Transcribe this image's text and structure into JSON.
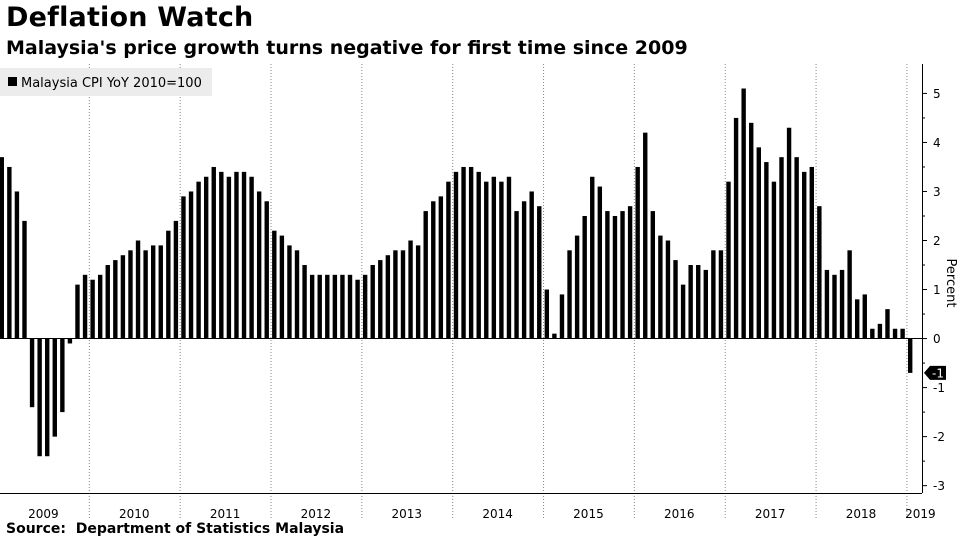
{
  "title": "Deflation Watch",
  "subtitle": "Malaysia's price growth turns negative for first time since 2009",
  "source": "Source:  Department of Statistics Malaysia",
  "chart_data": {
    "type": "bar",
    "series": [
      {
        "name": "Malaysia CPI YoY 2010=100",
        "color": "#000000",
        "x": [
          "2009-01",
          "2009-02",
          "2009-03",
          "2009-04",
          "2009-05",
          "2009-06",
          "2009-07",
          "2009-08",
          "2009-09",
          "2009-10",
          "2009-11",
          "2009-12",
          "2010-01",
          "2010-02",
          "2010-03",
          "2010-04",
          "2010-05",
          "2010-06",
          "2010-07",
          "2010-08",
          "2010-09",
          "2010-10",
          "2010-11",
          "2010-12",
          "2011-01",
          "2011-02",
          "2011-03",
          "2011-04",
          "2011-05",
          "2011-06",
          "2011-07",
          "2011-08",
          "2011-09",
          "2011-10",
          "2011-11",
          "2011-12",
          "2012-01",
          "2012-02",
          "2012-03",
          "2012-04",
          "2012-05",
          "2012-06",
          "2012-07",
          "2012-08",
          "2012-09",
          "2012-10",
          "2012-11",
          "2012-12",
          "2013-01",
          "2013-02",
          "2013-03",
          "2013-04",
          "2013-05",
          "2013-06",
          "2013-07",
          "2013-08",
          "2013-09",
          "2013-10",
          "2013-11",
          "2013-12",
          "2014-01",
          "2014-02",
          "2014-03",
          "2014-04",
          "2014-05",
          "2014-06",
          "2014-07",
          "2014-08",
          "2014-09",
          "2014-10",
          "2014-11",
          "2014-12",
          "2015-01",
          "2015-02",
          "2015-03",
          "2015-04",
          "2015-05",
          "2015-06",
          "2015-07",
          "2015-08",
          "2015-09",
          "2015-10",
          "2015-11",
          "2015-12",
          "2016-01",
          "2016-02",
          "2016-03",
          "2016-04",
          "2016-05",
          "2016-06",
          "2016-07",
          "2016-08",
          "2016-09",
          "2016-10",
          "2016-11",
          "2016-12",
          "2017-01",
          "2017-02",
          "2017-03",
          "2017-04",
          "2017-05",
          "2017-06",
          "2017-07",
          "2017-08",
          "2017-09",
          "2017-10",
          "2017-11",
          "2017-12",
          "2018-01",
          "2018-02",
          "2018-03",
          "2018-04",
          "2018-05",
          "2018-06",
          "2018-07",
          "2018-08",
          "2018-09",
          "2018-10",
          "2018-11",
          "2018-12",
          "2019-01"
        ],
        "values": [
          3.7,
          3.5,
          3.0,
          2.4,
          -1.4,
          -2.4,
          -2.4,
          -2.0,
          -1.5,
          -0.1,
          1.1,
          1.3,
          1.2,
          1.3,
          1.5,
          1.6,
          1.7,
          1.8,
          2.0,
          1.8,
          1.9,
          1.9,
          2.2,
          2.4,
          2.9,
          3.0,
          3.2,
          3.3,
          3.5,
          3.4,
          3.3,
          3.4,
          3.4,
          3.3,
          3.0,
          2.8,
          2.2,
          2.1,
          1.9,
          1.8,
          1.5,
          1.3,
          1.3,
          1.3,
          1.3,
          1.3,
          1.3,
          1.2,
          1.3,
          1.5,
          1.6,
          1.7,
          1.8,
          1.8,
          2.0,
          1.9,
          2.6,
          2.8,
          2.9,
          3.2,
          3.4,
          3.5,
          3.5,
          3.4,
          3.2,
          3.3,
          3.2,
          3.3,
          2.6,
          2.8,
          3.0,
          2.7,
          1.0,
          0.1,
          0.9,
          1.8,
          2.1,
          2.5,
          3.3,
          3.1,
          2.6,
          2.5,
          2.6,
          2.7,
          3.5,
          4.2,
          2.6,
          2.1,
          2.0,
          1.6,
          1.1,
          1.5,
          1.5,
          1.4,
          1.8,
          1.8,
          3.2,
          4.5,
          5.1,
          4.4,
          3.9,
          3.6,
          3.2,
          3.7,
          4.3,
          3.7,
          3.4,
          3.5,
          2.7,
          1.4,
          1.3,
          1.4,
          1.8,
          0.8,
          0.9,
          0.2,
          0.3,
          0.6,
          0.2,
          0.2,
          -0.7
        ]
      }
    ],
    "ylabel": "Percent",
    "yticks": [
      -3,
      -2,
      -1,
      0,
      1,
      2,
      3,
      4,
      5
    ],
    "ylim": [
      -3.15,
      5.6
    ],
    "year_labels": [
      "2009",
      "2010",
      "2011",
      "2012",
      "2013",
      "2014",
      "2015",
      "2016",
      "2017",
      "2018",
      "2019"
    ],
    "last_value_label": "-1",
    "grid": true,
    "grid_axis": "x",
    "grid_style": "dotted",
    "legend": {
      "position": "top-left",
      "text": "Malaysia CPI YoY 2010=100"
    }
  }
}
